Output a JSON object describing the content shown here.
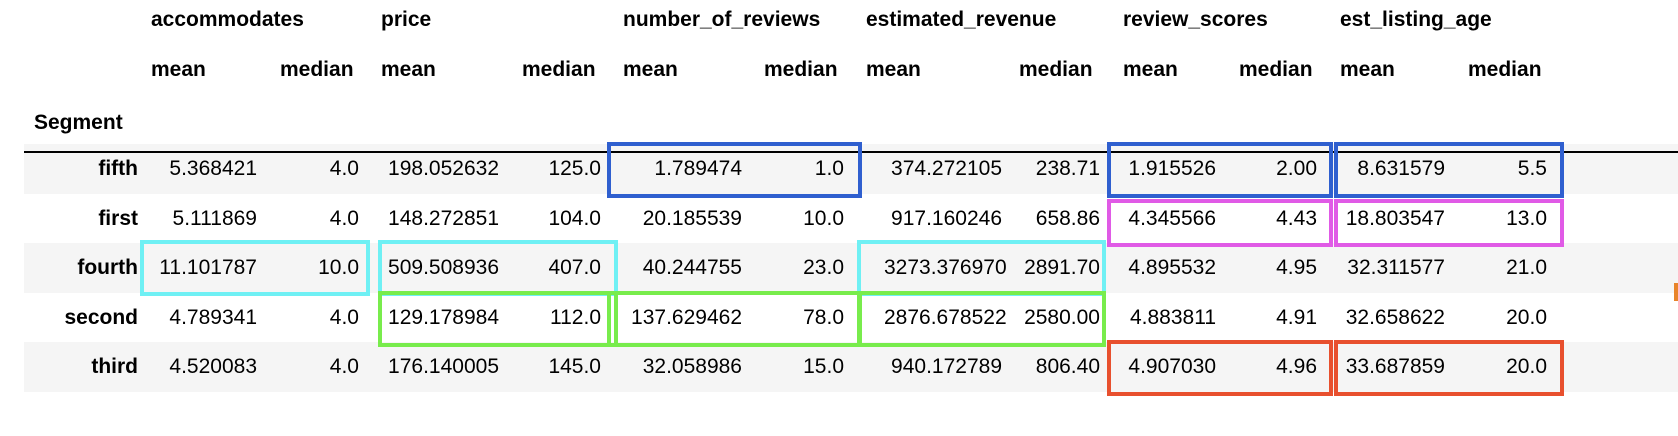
{
  "index_name": "Segment",
  "groups": [
    {
      "label": "accommodates",
      "stats": [
        "mean",
        "median"
      ]
    },
    {
      "label": "price",
      "stats": [
        "mean",
        "median"
      ]
    },
    {
      "label": "number_of_reviews",
      "stats": [
        "mean",
        "median"
      ]
    },
    {
      "label": "estimated_revenue",
      "stats": [
        "mean",
        "median"
      ]
    },
    {
      "label": "review_scores",
      "stats": [
        "mean",
        "median"
      ]
    },
    {
      "label": "est_listing_age",
      "stats": [
        "mean",
        "median"
      ]
    }
  ],
  "rows": [
    {
      "segment": "fifth",
      "values": [
        "5.368421",
        "4.0",
        "198.052632",
        "125.0",
        "1.789474",
        "1.0",
        "374.272105",
        "238.71",
        "1.915526",
        "2.00",
        "8.631579",
        "5.5"
      ]
    },
    {
      "segment": "first",
      "values": [
        "5.111869",
        "4.0",
        "148.272851",
        "104.0",
        "20.185539",
        "10.0",
        "917.160246",
        "658.86",
        "4.345566",
        "4.43",
        "18.803547",
        "13.0"
      ]
    },
    {
      "segment": "fourth",
      "values": [
        "11.101787",
        "10.0",
        "509.508936",
        "407.0",
        "40.244755",
        "23.0",
        "3273.376970",
        "2891.70",
        "4.895532",
        "4.95",
        "32.311577",
        "21.0"
      ]
    },
    {
      "segment": "second",
      "values": [
        "4.789341",
        "4.0",
        "129.178984",
        "112.0",
        "137.629462",
        "78.0",
        "2876.678522",
        "2580.00",
        "4.883811",
        "4.91",
        "32.658622",
        "20.0"
      ]
    },
    {
      "segment": "third",
      "values": [
        "4.520083",
        "4.0",
        "176.140005",
        "145.0",
        "32.058986",
        "15.0",
        "940.172789",
        "806.40",
        "4.907030",
        "4.96",
        "33.687859",
        "20.0"
      ]
    }
  ],
  "highlight_colors": {
    "blue": "#2f5fcf",
    "magenta": "#e05ae6",
    "cyan": "#6ff0f4",
    "green": "#78ec4c",
    "red": "#e8502e"
  },
  "highlights": [
    {
      "row": "fifth",
      "group": "number_of_reviews",
      "color": "blue"
    },
    {
      "row": "fifth",
      "group": "review_scores",
      "color": "blue"
    },
    {
      "row": "fifth",
      "group": "est_listing_age",
      "color": "blue"
    },
    {
      "row": "first",
      "group": "review_scores",
      "color": "magenta"
    },
    {
      "row": "first",
      "group": "est_listing_age",
      "color": "magenta"
    },
    {
      "row": "fourth",
      "group": "accommodates",
      "color": "cyan"
    },
    {
      "row": "fourth",
      "group": "price",
      "color": "cyan"
    },
    {
      "row": "fourth",
      "group": "estimated_revenue",
      "color": "cyan"
    },
    {
      "row": "second",
      "group": "price",
      "color": "green"
    },
    {
      "row": "second",
      "group": "number_of_reviews",
      "color": "green"
    },
    {
      "row": "second",
      "group": "estimated_revenue",
      "color": "green"
    },
    {
      "row": "third",
      "group": "review_scores",
      "color": "red"
    },
    {
      "row": "third",
      "group": "est_listing_age",
      "color": "red"
    }
  ]
}
